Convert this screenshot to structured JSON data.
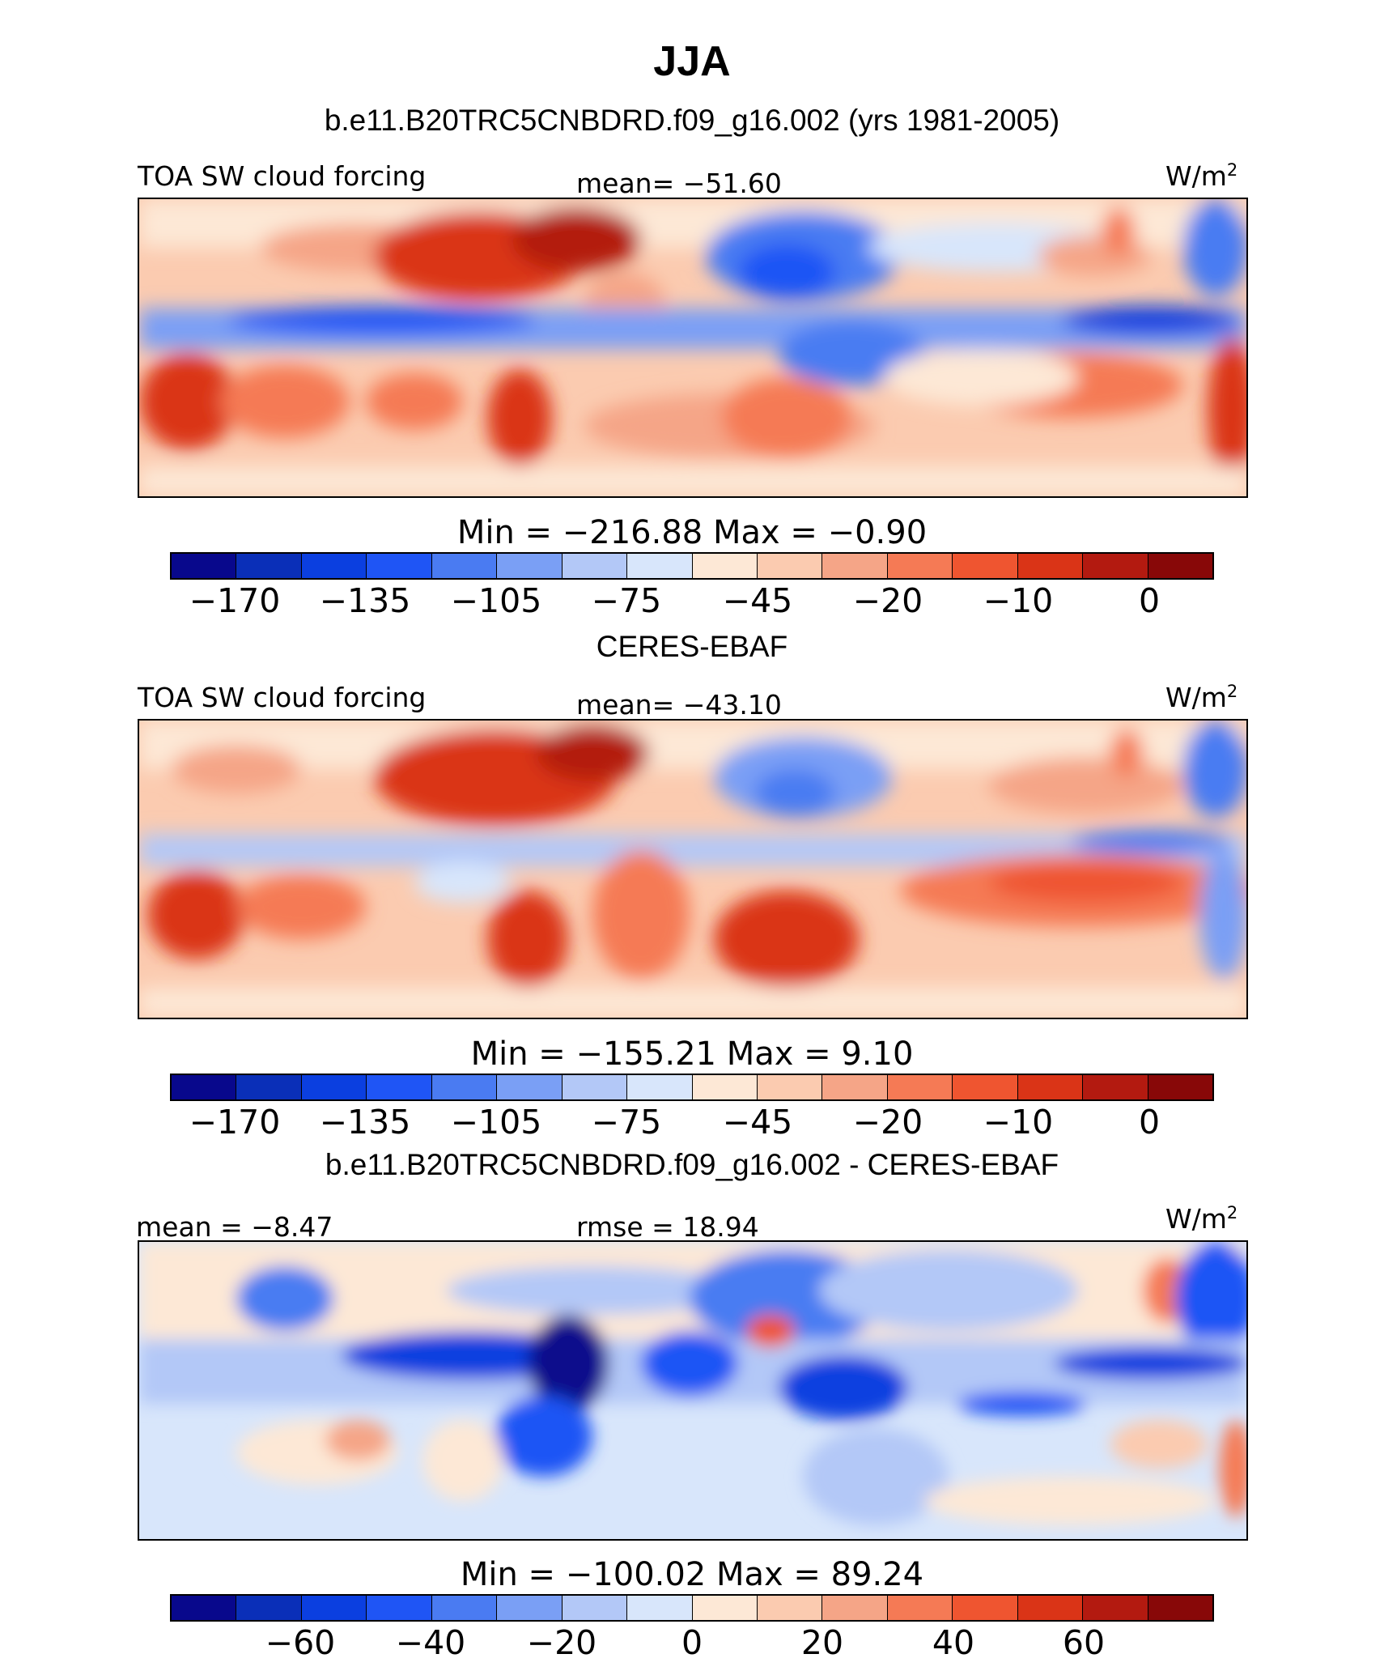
{
  "chart_data": {
    "type": "contour-map",
    "title": "JJA",
    "colorbar_colors": [
      "#08088c",
      "#0a2fb8",
      "#0b3fe0",
      "#1f55f5",
      "#4a7bf2",
      "#7a9ff5",
      "#b3c8f7",
      "#d8e6fb",
      "#fde8d6",
      "#fbcbb0",
      "#f5a587",
      "#f57a55",
      "#ef5530",
      "#da3417",
      "#b31a10",
      "#880808"
    ],
    "panels": [
      {
        "id": "model",
        "title": "b.e11.B20TRC5CNBDRD.f09_g16.002 (yrs 1981-2005)",
        "left_label": "TOA SW cloud forcing",
        "center_label": "mean= −51.60",
        "units": "W/m",
        "units_sup": "2",
        "stat": "Min  =  −216.88  Max  =   −0.90",
        "min": -216.88,
        "max": -0.9,
        "mean": -51.6,
        "colorbar_ticks": [
          "−170",
          "−135",
          "−105",
          "−75",
          "−45",
          "−20",
          "−10",
          "0"
        ]
      },
      {
        "id": "obs",
        "title": "CERES-EBAF",
        "left_label": "TOA SW cloud forcing",
        "center_label": "mean= −43.10",
        "units": "W/m",
        "units_sup": "2",
        "stat": "Min  =  −155.21  Max  =    9.10",
        "min": -155.21,
        "max": 9.1,
        "mean": -43.1,
        "colorbar_ticks": [
          "−170",
          "−135",
          "−105",
          "−75",
          "−45",
          "−20",
          "−10",
          "0"
        ]
      },
      {
        "id": "diff",
        "title": "b.e11.B20TRC5CNBDRD.f09_g16.002 - CERES-EBAF",
        "left_label": "mean =   −8.47",
        "center_label": "rmse =   18.94",
        "units": "W/m",
        "units_sup": "2",
        "stat": "Min  =  −100.02  Max  =   89.24",
        "min": -100.02,
        "max": 89.24,
        "mean": -8.47,
        "rmse": 18.94,
        "colorbar_ticks": [
          "−60",
          "−40",
          "−20",
          "0",
          "20",
          "40",
          "60"
        ]
      }
    ]
  }
}
